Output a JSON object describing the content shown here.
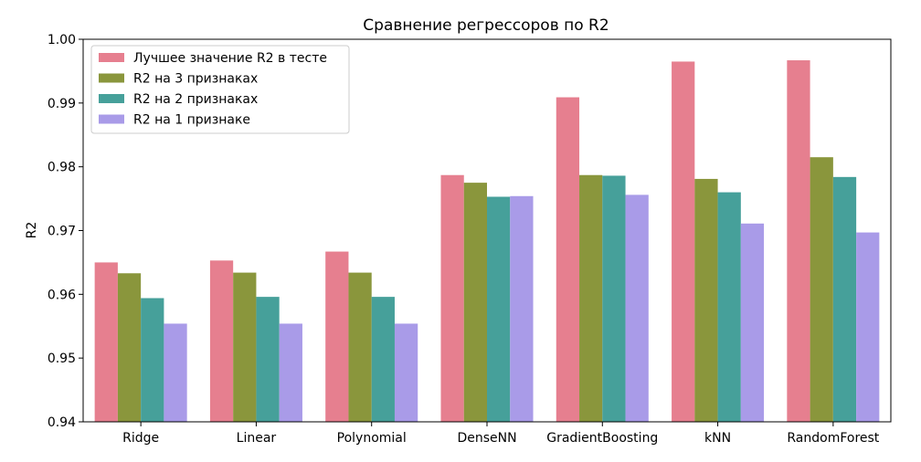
{
  "chart_data": {
    "type": "bar",
    "title": "Сравнение регрессоров по R2",
    "xlabel": "",
    "ylabel": "R2",
    "ylim": [
      0.94,
      1.0
    ],
    "yticks": [
      "0.94",
      "0.95",
      "0.96",
      "0.97",
      "0.98",
      "0.99",
      "1.00"
    ],
    "grid": false,
    "legend_position": "top-left",
    "categories": [
      "Ridge",
      "Linear",
      "Polynomial",
      "DenseNN",
      "GradientBoosting",
      "kNN",
      "RandomForest"
    ],
    "series": [
      {
        "name": "Лучшее значение R2 в тесте",
        "color": "#e67f8f",
        "values": [
          0.965,
          0.9653,
          0.9667,
          0.9787,
          0.9909,
          0.9965,
          0.9967
        ]
      },
      {
        "name": "R2 на 3 признаках",
        "color": "#8a963c",
        "values": [
          0.9633,
          0.9634,
          0.9634,
          0.9775,
          0.9787,
          0.9781,
          0.9815
        ]
      },
      {
        "name": "R2 на 2 признаках",
        "color": "#46a09a",
        "values": [
          0.9594,
          0.9596,
          0.9596,
          0.9753,
          0.9786,
          0.976,
          0.9784
        ]
      },
      {
        "name": "R2 на 1 признаке",
        "color": "#a99be8",
        "values": [
          0.9554,
          0.9554,
          0.9554,
          0.9754,
          0.9756,
          0.9711,
          0.9697
        ]
      }
    ]
  }
}
